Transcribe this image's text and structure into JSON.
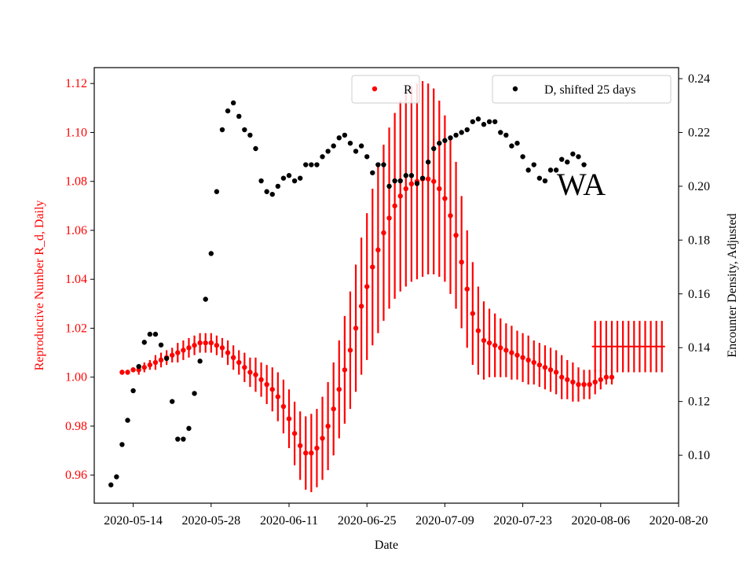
{
  "chart_data": {
    "type": "line",
    "annotation": "WA",
    "xlabel": "Date",
    "x_ticks": [
      "2020-05-14",
      "2020-05-28",
      "2020-06-11",
      "2020-06-25",
      "2020-07-09",
      "2020-07-23",
      "2020-08-06",
      "2020-08-20"
    ],
    "x_range": [
      "2020-05-07",
      "2020-08-20"
    ],
    "left_axis": {
      "label": "Reproductive Number R_d, Daily",
      "ticks": [
        "0.96",
        "0.98",
        "1.00",
        "1.02",
        "1.04",
        "1.06",
        "1.08",
        "1.10",
        "1.12"
      ],
      "range": [
        0.9485,
        1.1265
      ],
      "color": "#ff0000"
    },
    "right_axis": {
      "label": "Encounter Density, Adjusted",
      "ticks": [
        "0.10",
        "0.12",
        "0.14",
        "0.16",
        "0.18",
        "0.20",
        "0.22",
        "0.24"
      ],
      "range": [
        0.0822,
        0.2441
      ],
      "color": "#000000"
    },
    "legend_left": {
      "label": "R",
      "placement": "top-center"
    },
    "legend_right": {
      "label": "D, shifted 25 days",
      "placement": "top-right"
    },
    "series_R": {
      "name": "R",
      "color": "#ff0000",
      "start_date": "2020-05-12",
      "values": [
        1.002,
        1.002,
        1.003,
        1.003,
        1.004,
        1.005,
        1.006,
        1.007,
        1.008,
        1.009,
        1.01,
        1.011,
        1.012,
        1.013,
        1.014,
        1.014,
        1.014,
        1.013,
        1.012,
        1.01,
        1.008,
        1.006,
        1.004,
        1.002,
        1.001,
        0.999,
        0.997,
        0.995,
        0.992,
        0.988,
        0.983,
        0.977,
        0.972,
        0.969,
        0.969,
        0.971,
        0.975,
        0.98,
        0.987,
        0.995,
        1.003,
        1.011,
        1.02,
        1.029,
        1.037,
        1.045,
        1.052,
        1.059,
        1.065,
        1.07,
        1.074,
        1.077,
        1.079,
        1.08,
        1.081,
        1.081,
        1.08,
        1.077,
        1.073,
        1.066,
        1.058,
        1.047,
        1.036,
        1.026,
        1.019,
        1.015,
        1.014,
        1.013,
        1.012,
        1.011,
        1.01,
        1.009,
        1.008,
        1.007,
        1.006,
        1.005,
        1.004,
        1.003,
        1.002,
        1.0,
        0.999,
        0.998,
        0.997,
        0.997,
        0.997,
        0.998,
        0.999,
        1.0,
        1.0
      ],
      "half_err": [
        0.001,
        0.001,
        0.001,
        0.002,
        0.002,
        0.002,
        0.003,
        0.003,
        0.003,
        0.003,
        0.004,
        0.004,
        0.004,
        0.004,
        0.004,
        0.004,
        0.004,
        0.004,
        0.004,
        0.005,
        0.005,
        0.005,
        0.006,
        0.006,
        0.007,
        0.007,
        0.008,
        0.009,
        0.01,
        0.011,
        0.012,
        0.013,
        0.014,
        0.015,
        0.016,
        0.016,
        0.017,
        0.018,
        0.019,
        0.02,
        0.022,
        0.024,
        0.026,
        0.028,
        0.03,
        0.032,
        0.034,
        0.036,
        0.037,
        0.038,
        0.039,
        0.04,
        0.04,
        0.04,
        0.04,
        0.039,
        0.038,
        0.036,
        0.034,
        0.032,
        0.03,
        0.027,
        0.024,
        0.021,
        0.018,
        0.016,
        0.014,
        0.013,
        0.012,
        0.011,
        0.011,
        0.01,
        0.01,
        0.01,
        0.009,
        0.009,
        0.009,
        0.009,
        0.009,
        0.009,
        0.008,
        0.008,
        0.007,
        0.006,
        0.006,
        0.005,
        0.004,
        0.003,
        0.003
      ]
    },
    "series_R_projection": {
      "name": "R",
      "color": "#ff0000",
      "start_date": "2020-08-05",
      "end_date": "2020-08-17",
      "value": 1.0125,
      "half_err": 0.0105
    },
    "series_D": {
      "name": "D, shifted 25 days",
      "color": "#000000",
      "start_date": "2020-05-10",
      "values": [
        0.089,
        0.092,
        0.104,
        0.113,
        0.124,
        0.133,
        0.142,
        0.145,
        0.145,
        0.141,
        0.136,
        0.12,
        0.106,
        0.106,
        0.11,
        0.123,
        0.135,
        0.158,
        0.175,
        0.198,
        0.221,
        0.228,
        0.231,
        0.226,
        0.221,
        0.219,
        0.214,
        0.202,
        0.198,
        0.197,
        0.2,
        0.203,
        0.204,
        0.202,
        0.203,
        0.208,
        0.208,
        0.208,
        0.211,
        0.213,
        0.215,
        0.218,
        0.219,
        0.216,
        0.213,
        0.215,
        0.211,
        0.205,
        0.208,
        0.208,
        0.2,
        0.202,
        0.202,
        0.204,
        0.204,
        0.201,
        0.203,
        0.209,
        0.214,
        0.216,
        0.217,
        0.218,
        0.219,
        0.22,
        0.221,
        0.224,
        0.225,
        0.223,
        0.224,
        0.224,
        0.22,
        0.219,
        0.215,
        0.216,
        0.211,
        0.206,
        0.208,
        0.203,
        0.202,
        0.206,
        0.206,
        0.21,
        0.209,
        0.212,
        0.211,
        0.208
      ]
    }
  }
}
